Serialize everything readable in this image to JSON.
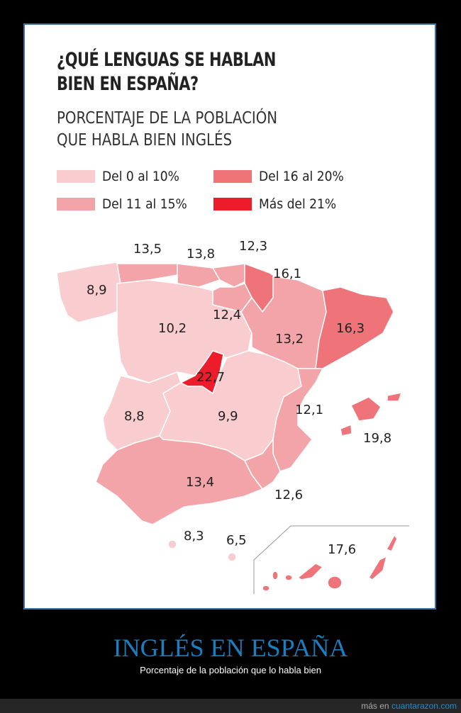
{
  "infographic": {
    "title_lines": [
      "¿QUÉ LENGUAS SE HABLAN",
      "BIEN EN ESPAÑA?"
    ],
    "subtitle_lines": [
      "PORCENTAJE DE LA POBLACIÓN",
      "QUE HABLA BIEN INGLÉS"
    ],
    "legend": [
      {
        "label": "Del 0 al 10%",
        "color": "#f9cdd0"
      },
      {
        "label": "Del 11 al 15%",
        "color": "#f3a4a8"
      },
      {
        "label": "Del 16 al 20%",
        "color": "#ee7479"
      },
      {
        "label": "Más del 21%",
        "color": "#ec1c2a"
      }
    ],
    "regions": [
      {
        "value": "8,9",
        "color": "#f9cdd0"
      },
      {
        "value": "13,5",
        "color": "#f3a4a8"
      },
      {
        "value": "13,8",
        "color": "#f3a4a8"
      },
      {
        "value": "12,3",
        "color": "#f3a4a8"
      },
      {
        "value": "16,1",
        "color": "#ee7479"
      },
      {
        "value": "12,4",
        "color": "#f3a4a8"
      },
      {
        "value": "10,2",
        "color": "#f9cdd0"
      },
      {
        "value": "13,2",
        "color": "#f3a4a8"
      },
      {
        "value": "16,3",
        "color": "#ee7479"
      },
      {
        "value": "22,7",
        "color": "#ec1c2a"
      },
      {
        "value": "8,8",
        "color": "#f9cdd0"
      },
      {
        "value": "9,9",
        "color": "#f9cdd0"
      },
      {
        "value": "12,1",
        "color": "#f3a4a8"
      },
      {
        "value": "19,8",
        "color": "#ee7479"
      },
      {
        "value": "13,4",
        "color": "#f3a4a8"
      },
      {
        "value": "12,6",
        "color": "#f3a4a8"
      },
      {
        "value": "8,3",
        "color": "#f9cdd0"
      },
      {
        "value": "6,5",
        "color": "#f9cdd0"
      },
      {
        "value": "17,6",
        "color": "#ee7479"
      }
    ]
  },
  "caption": {
    "title": "INGLÉS EN ESPAÑA",
    "subtitle": "Porcentaje de la población que lo habla bien"
  },
  "footer": {
    "prefix": "más en",
    "site": "cuantarazon.com"
  }
}
